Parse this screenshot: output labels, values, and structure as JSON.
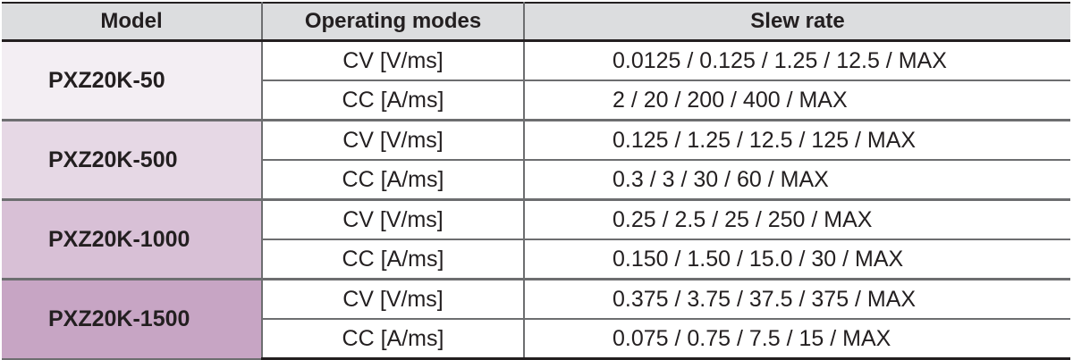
{
  "table": {
    "headers": {
      "model": "Model",
      "modes": "Operating modes",
      "slew": "Slew rate"
    },
    "groups": [
      {
        "model": "PXZ20K-50",
        "color": "#f3eef3",
        "rows": [
          {
            "mode": "CV [V/ms]",
            "rate": "0.0125 / 0.125 / 1.25 / 12.5 / MAX"
          },
          {
            "mode": "CC [A/ms]",
            "rate": "2 / 20 / 200 / 400 / MAX"
          }
        ]
      },
      {
        "model": "PXZ20K-500",
        "color": "#e6d8e5",
        "rows": [
          {
            "mode": "CV [V/ms]",
            "rate": "0.125 / 1.25 / 12.5 / 125 / MAX"
          },
          {
            "mode": "CC [A/ms]",
            "rate": "0.3 / 3 / 30 / 60 / MAX"
          }
        ]
      },
      {
        "model": "PXZ20K-1000",
        "color": "#d8c0d6",
        "rows": [
          {
            "mode": "CV [V/ms]",
            "rate": "0.25 / 2.5 / 25 / 250 / MAX"
          },
          {
            "mode": "CC [A/ms]",
            "rate": "0.150 / 1.50 / 15.0 / 30 / MAX"
          }
        ]
      },
      {
        "model": "PXZ20K-1500",
        "color": "#c7a5c4",
        "rows": [
          {
            "mode": "CV [V/ms]",
            "rate": "0.375 / 3.75 / 37.5 / 375 / MAX"
          },
          {
            "mode": "CC [A/ms]",
            "rate": "0.075 / 0.75 / 7.5 / 15 / MAX"
          }
        ]
      }
    ]
  }
}
